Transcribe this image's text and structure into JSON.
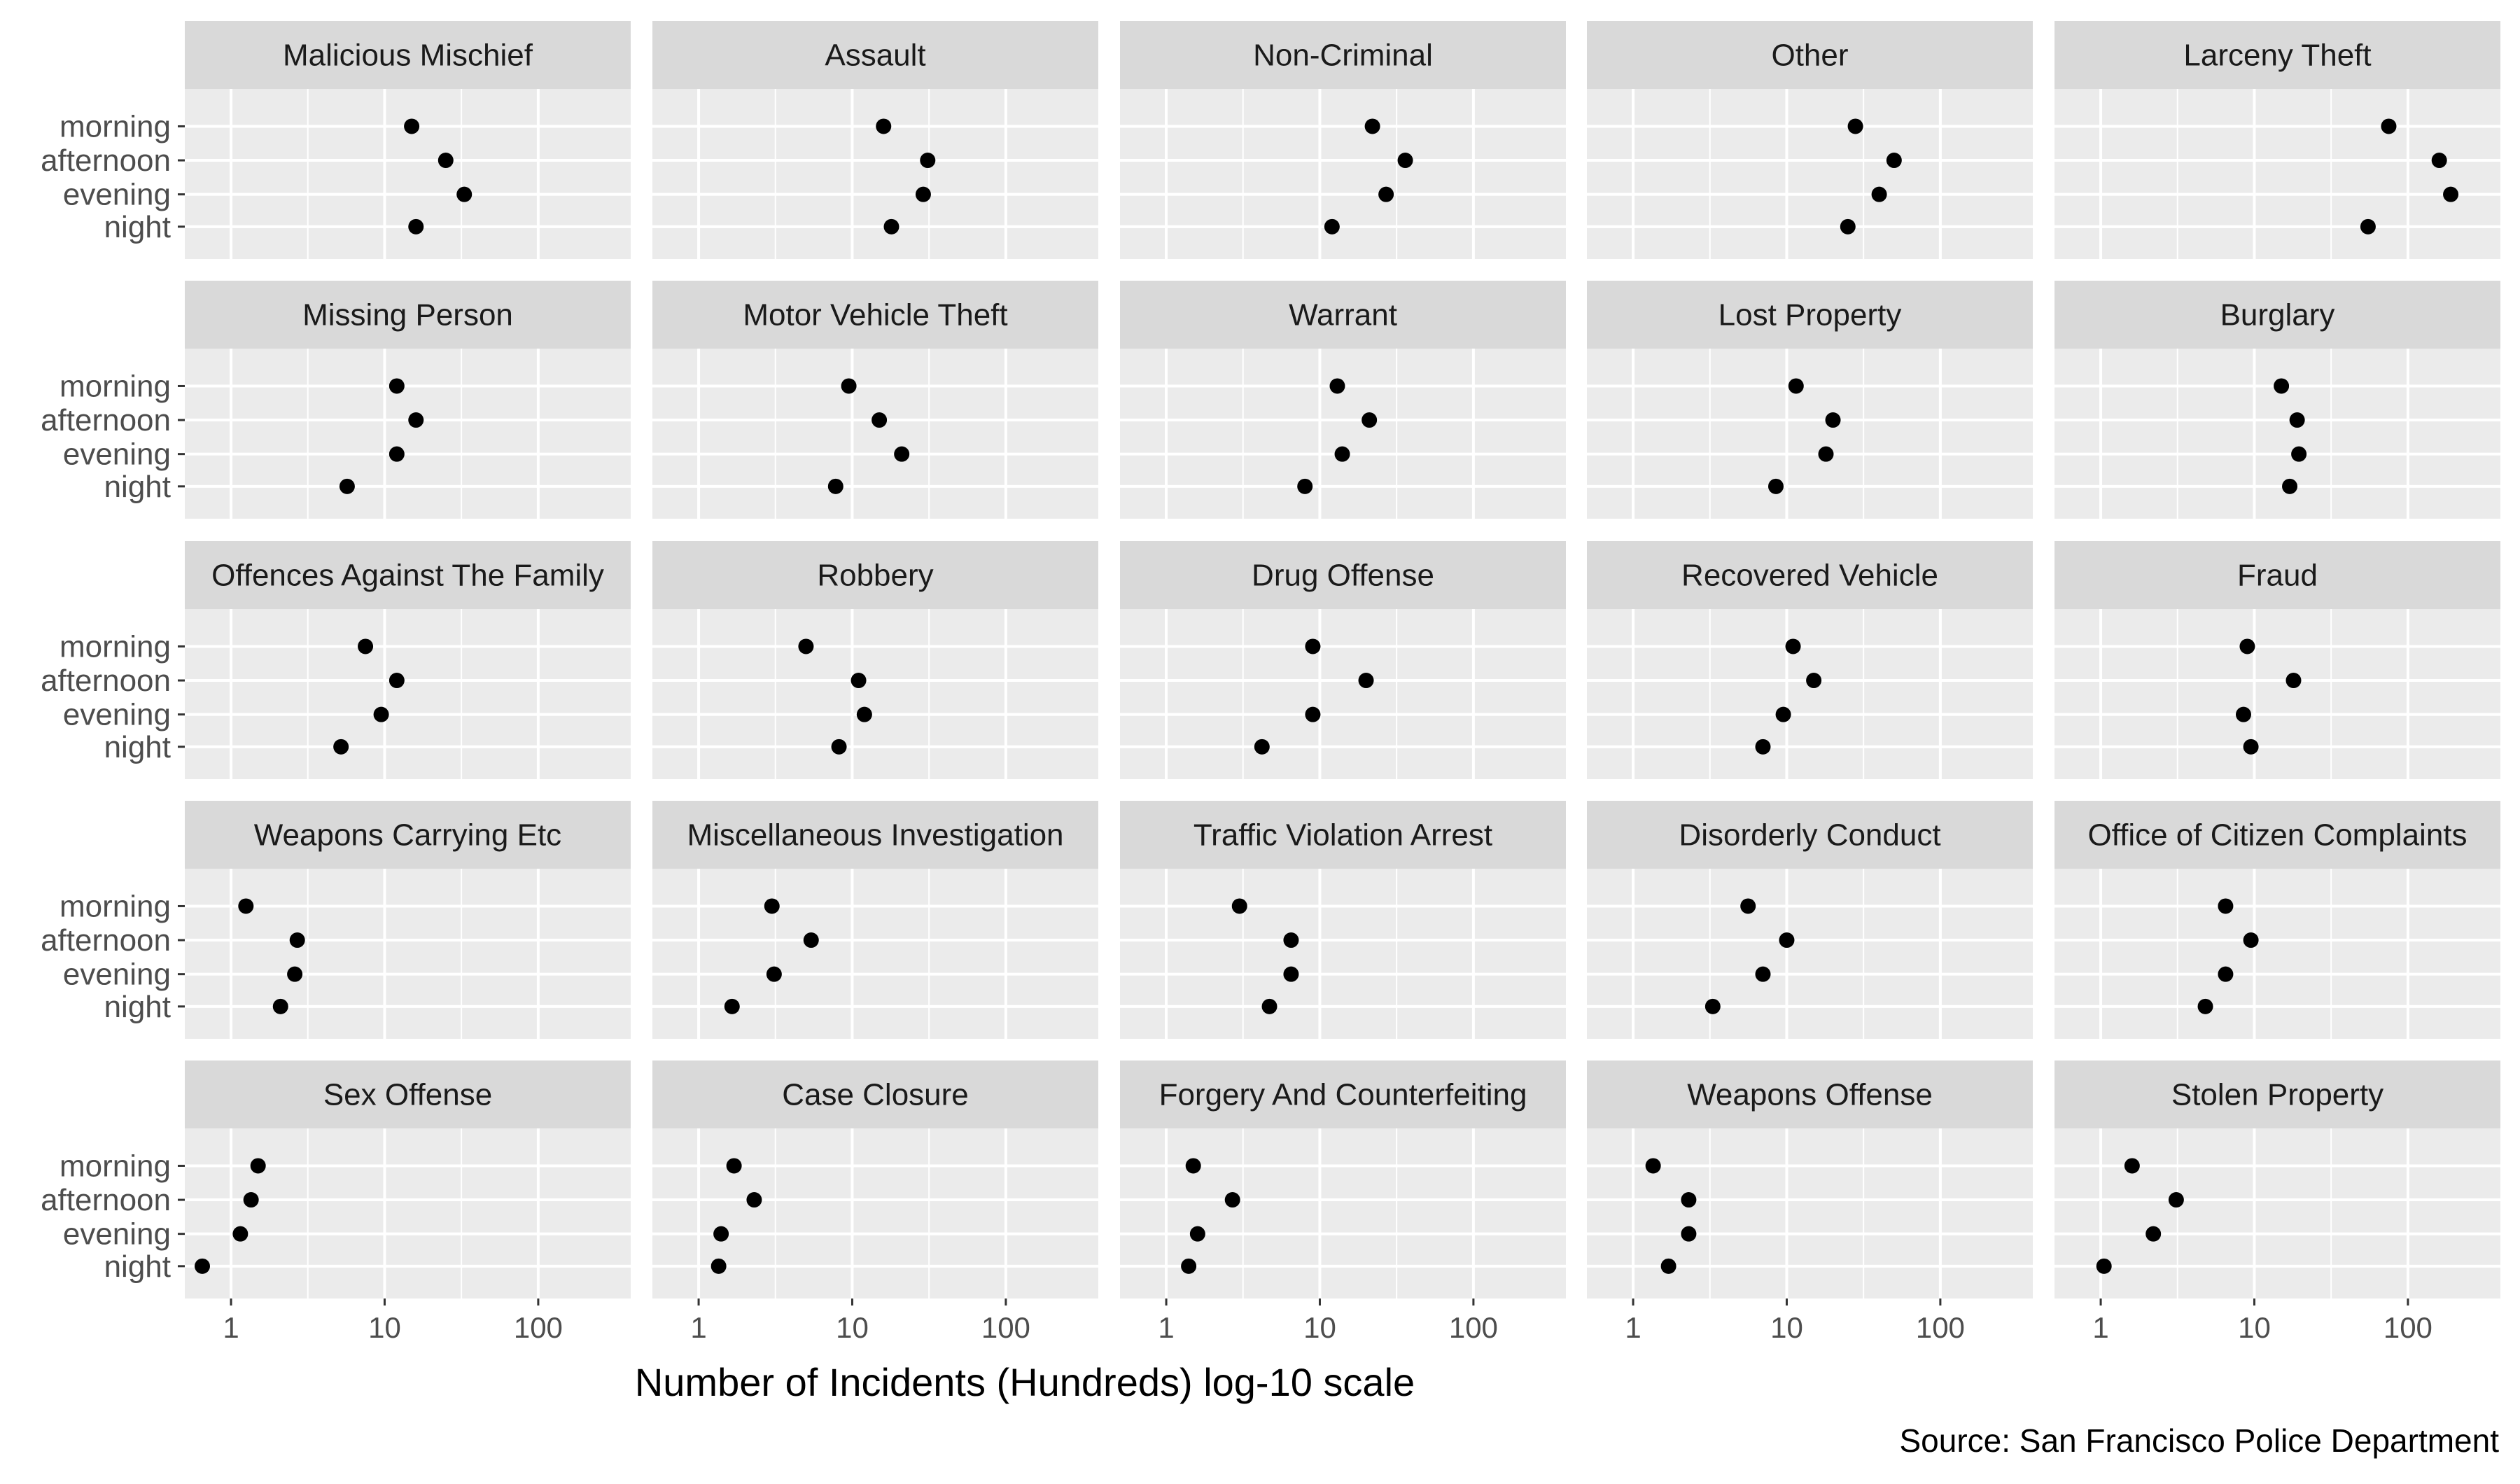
{
  "chart_data": {
    "type": "scatter",
    "xlabel": "Number of Incidents (Hundreds) log-10 scale",
    "ylabel": "",
    "x_scale": "log10",
    "xlim": [
      0.5,
      400
    ],
    "x_ticks": [
      1,
      10,
      100
    ],
    "x_tick_labels": [
      "1",
      "10",
      "100"
    ],
    "categories": [
      "morning",
      "afternoon",
      "evening",
      "night"
    ],
    "caption": "Source: San Francisco Police Department",
    "colors": {
      "panel_bg": "#ebebeb",
      "strip_bg": "#d9d9d9",
      "grid_major": "#ffffff",
      "point": "#000000"
    },
    "grid": true,
    "layout": "facet 5x5",
    "panels": [
      {
        "title": "Malicious Mischief",
        "values": [
          15,
          25,
          33,
          16
        ]
      },
      {
        "title": "Assault",
        "values": [
          16,
          31,
          29,
          18
        ]
      },
      {
        "title": "Non-Criminal",
        "values": [
          22,
          36,
          27,
          12
        ]
      },
      {
        "title": "Other",
        "values": [
          28,
          50,
          40,
          25
        ]
      },
      {
        "title": "Larceny Theft",
        "values": [
          75,
          160,
          190,
          55
        ]
      },
      {
        "title": "Missing Person",
        "values": [
          12,
          16,
          12,
          5.7
        ]
      },
      {
        "title": "Motor Vehicle Theft",
        "values": [
          9.5,
          15,
          21,
          7.8
        ]
      },
      {
        "title": "Warrant",
        "values": [
          13,
          21,
          14,
          8
        ]
      },
      {
        "title": "Lost Property",
        "values": [
          11.5,
          20,
          18,
          8.5
        ]
      },
      {
        "title": "Burglary",
        "values": [
          15,
          19,
          19.5,
          17
        ]
      },
      {
        "title": "Offences Against The Family",
        "values": [
          7.5,
          12,
          9.5,
          5.2
        ]
      },
      {
        "title": "Robbery",
        "values": [
          5,
          11,
          12,
          8.2
        ]
      },
      {
        "title": "Drug Offense",
        "values": [
          9,
          20,
          9,
          4.2
        ]
      },
      {
        "title": "Recovered Vehicle",
        "values": [
          11,
          15,
          9.5,
          7
        ]
      },
      {
        "title": "Fraud",
        "values": [
          9,
          18,
          8.5,
          9.5
        ]
      },
      {
        "title": "Weapons Carrying Etc",
        "values": [
          1.25,
          2.7,
          2.6,
          2.1
        ]
      },
      {
        "title": "Miscellaneous Investigation",
        "values": [
          3,
          5.4,
          3.1,
          1.65
        ]
      },
      {
        "title": "Traffic Violation Arrest",
        "values": [
          3,
          6.5,
          6.5,
          4.7
        ]
      },
      {
        "title": "Disorderly Conduct",
        "values": [
          5.6,
          10,
          7,
          3.3
        ]
      },
      {
        "title": "Office of Citizen Complaints",
        "values": [
          6.5,
          9.5,
          6.5,
          4.8
        ]
      },
      {
        "title": "Sex Offense",
        "values": [
          1.5,
          1.35,
          1.15,
          0.65
        ]
      },
      {
        "title": "Case Closure",
        "values": [
          1.7,
          2.3,
          1.4,
          1.35
        ]
      },
      {
        "title": "Forgery And Counterfeiting",
        "values": [
          1.5,
          2.7,
          1.6,
          1.4
        ]
      },
      {
        "title": "Weapons Offense",
        "values": [
          1.35,
          2.3,
          2.3,
          1.7
        ]
      },
      {
        "title": "Stolen Property",
        "values": [
          1.6,
          3.1,
          2.2,
          1.05
        ]
      }
    ]
  }
}
